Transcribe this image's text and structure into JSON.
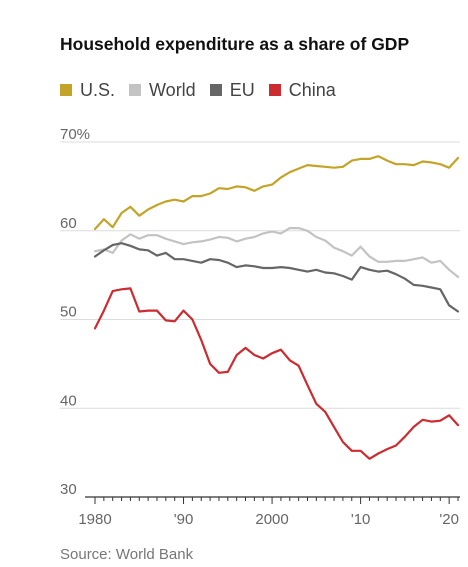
{
  "chart_data": {
    "type": "line",
    "title": "Household expenditure as a share of GDP",
    "source": "Source: World Bank",
    "y_ticks": [
      {
        "value": 70,
        "label": "70%"
      },
      {
        "value": 60,
        "label": "60"
      },
      {
        "value": 50,
        "label": "50"
      },
      {
        "value": 40,
        "label": "40"
      },
      {
        "value": 30,
        "label": "30"
      }
    ],
    "x_ticks": [
      {
        "value": 1980,
        "label": "1980"
      },
      {
        "value": 1990,
        "label": "'90"
      },
      {
        "value": 2000,
        "label": "2000"
      },
      {
        "value": 2010,
        "label": "'10"
      },
      {
        "value": 2020,
        "label": "'20"
      }
    ],
    "xlim": [
      1980,
      2021
    ],
    "ylim": [
      30,
      70
    ],
    "grid": true,
    "legend_position": "top-left",
    "x": [
      1980,
      1981,
      1982,
      1983,
      1984,
      1985,
      1986,
      1987,
      1988,
      1989,
      1990,
      1991,
      1992,
      1993,
      1994,
      1995,
      1996,
      1997,
      1998,
      1999,
      2000,
      2001,
      2002,
      2003,
      2004,
      2005,
      2006,
      2007,
      2008,
      2009,
      2010,
      2011,
      2012,
      2013,
      2014,
      2015,
      2016,
      2017,
      2018,
      2019,
      2020,
      2021
    ],
    "series": [
      {
        "name": "U.S.",
        "color": "#c4a428",
        "values": [
          60.2,
          61.3,
          60.4,
          62.0,
          62.7,
          61.7,
          62.4,
          62.9,
          63.3,
          63.5,
          63.3,
          63.9,
          63.9,
          64.2,
          64.8,
          64.7,
          65.0,
          64.9,
          64.5,
          65.0,
          65.2,
          66.0,
          66.6,
          67.0,
          67.4,
          67.3,
          67.2,
          67.1,
          67.2,
          67.9,
          68.1,
          68.1,
          68.4,
          67.9,
          67.5,
          67.5,
          67.4,
          67.8,
          67.7,
          67.5,
          67.1,
          68.2
        ]
      },
      {
        "name": "World",
        "color": "#c3c3c3",
        "values": [
          57.7,
          57.9,
          57.5,
          58.9,
          59.6,
          59.1,
          59.5,
          59.5,
          59.1,
          58.8,
          58.5,
          58.7,
          58.8,
          59.0,
          59.3,
          59.2,
          58.8,
          59.1,
          59.3,
          59.7,
          59.9,
          59.7,
          60.3,
          60.3,
          60.0,
          59.3,
          58.9,
          58.1,
          57.7,
          57.2,
          58.2,
          57.1,
          56.5,
          56.5,
          56.6,
          56.6,
          56.8,
          57.0,
          56.4,
          56.6,
          55.6,
          54.8
        ]
      },
      {
        "name": "EU",
        "color": "#666666",
        "values": [
          57.1,
          57.8,
          58.4,
          58.6,
          58.3,
          57.9,
          57.8,
          57.2,
          57.5,
          56.8,
          56.8,
          56.6,
          56.4,
          56.8,
          56.7,
          56.4,
          55.9,
          56.1,
          56.0,
          55.8,
          55.8,
          55.9,
          55.8,
          55.6,
          55.4,
          55.6,
          55.3,
          55.2,
          54.9,
          54.5,
          55.9,
          55.6,
          55.4,
          55.5,
          55.1,
          54.6,
          53.9,
          53.8,
          53.6,
          53.4,
          51.6,
          50.9
        ]
      },
      {
        "name": "China",
        "color": "#cc2b2f",
        "values": [
          49.0,
          51.0,
          53.2,
          53.4,
          53.5,
          50.9,
          51.0,
          51.0,
          49.9,
          49.8,
          51.0,
          50.0,
          47.7,
          45.0,
          44.0,
          44.1,
          46.0,
          46.8,
          46.0,
          45.6,
          46.2,
          46.6,
          45.4,
          44.8,
          42.6,
          40.5,
          39.6,
          37.9,
          36.2,
          35.2,
          35.2,
          34.3,
          34.9,
          35.4,
          35.8,
          36.8,
          37.9,
          38.7,
          38.5,
          38.6,
          39.2,
          38.1
        ]
      }
    ]
  }
}
